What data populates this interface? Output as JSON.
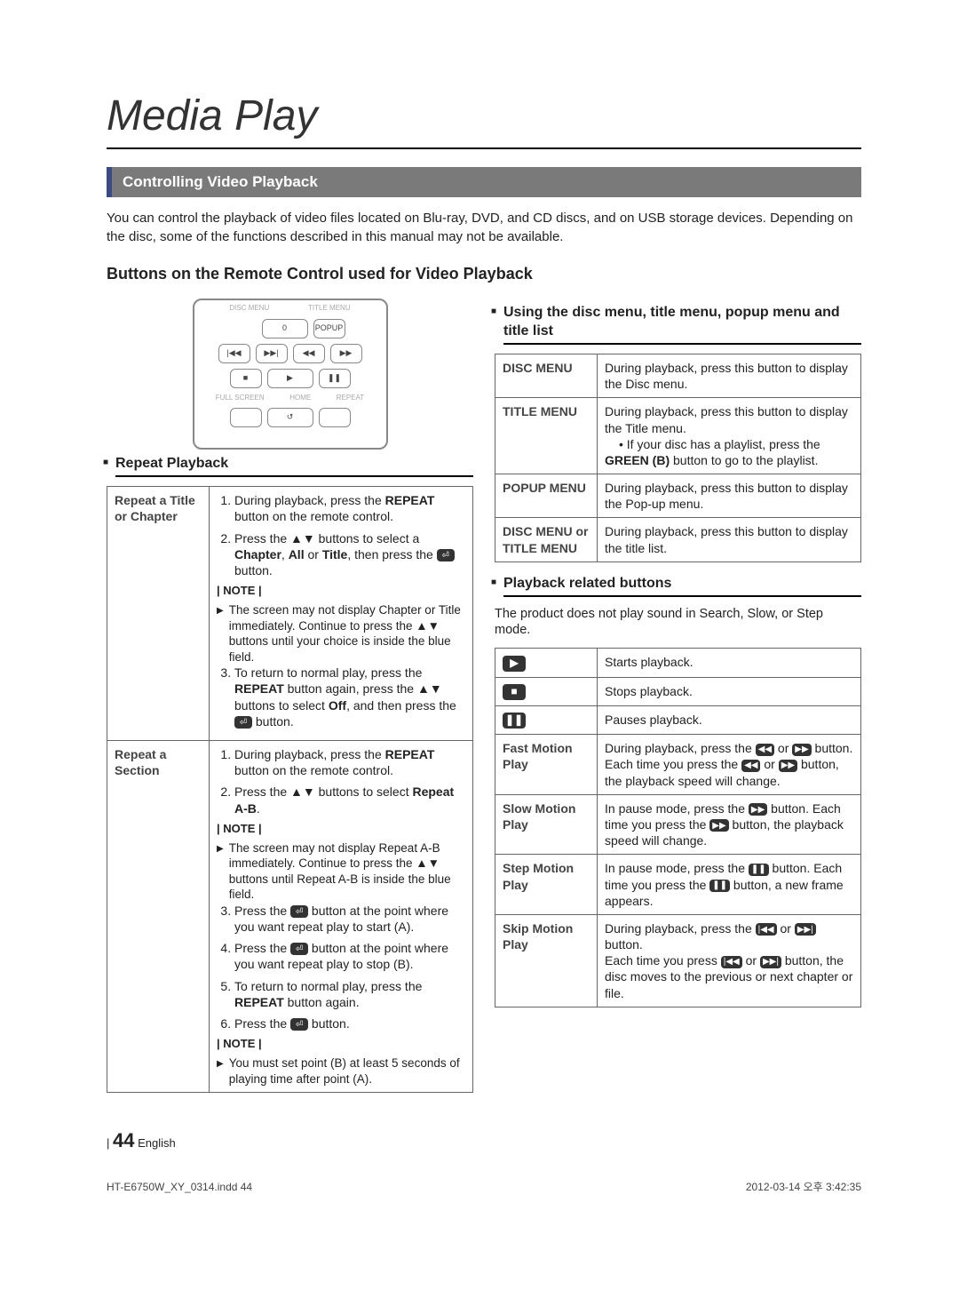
{
  "page": {
    "title": "Media Play",
    "section_bar": "Controlling Video Playback",
    "intro": "You can control the playback of video files located on Blu-ray, DVD, and CD discs, and on USB storage devices. Depending on the disc, some of the functions described in this manual may not be available.",
    "subhead": "Buttons on the Remote Control used for Video Playback",
    "page_number": "44",
    "lang": "English",
    "indd_line": "HT-E6750W_XY_0314.indd   44",
    "timestamp": "2012-03-14   오후 3:42:35"
  },
  "remote": {
    "row1_labels": [
      "DISC MENU",
      "TITLE MENU"
    ],
    "row1_right": "POPUP",
    "row1_num": "0",
    "row2": [
      "|◀◀",
      "▶▶|",
      "◀◀",
      "▶▶"
    ],
    "row3": [
      "■",
      "▶",
      "❚❚"
    ],
    "row4_labels": [
      "FULL SCREEN",
      "HOME",
      "REPEAT"
    ],
    "row4_center": "↺"
  },
  "left": {
    "repeat_head": "Repeat Playback",
    "rows": [
      {
        "label": "Repeat a Title or Chapter",
        "steps": [
          "During playback, press the <b>REPEAT</b> button on the remote control.",
          "Press the ▲▼ buttons to select a <b>Chapter</b>, <b>All</b> or <b>Title</b>, then press the <span class='ricon'>⏎</span> button."
        ],
        "note_label": "| NOTE |",
        "notes": [
          "The screen may not display Chapter or Title immediately. Continue to press the ▲▼ buttons until your choice is inside the blue field."
        ],
        "steps2": [
          "To return to normal play, press the <b>REPEAT</b> button again, press the ▲▼ buttons to select <b>Off</b>, and then press the <span class='ricon'>⏎</span> button."
        ]
      },
      {
        "label": "Repeat a Section",
        "steps": [
          "During playback, press the <b>REPEAT</b> button on the remote control.",
          "Press the ▲▼ buttons to select <b>Repeat A-B</b>."
        ],
        "note_label": "| NOTE |",
        "notes": [
          "The screen may not display Repeat A-B immediately. Continue to press the ▲▼ buttons until  Repeat A-B  is inside the blue field."
        ],
        "steps2": [
          "Press the <span class='ricon'>⏎</span> button at the point where you want repeat play to start (A).",
          "Press the <span class='ricon'>⏎</span> button at the point where you want repeat play to stop (B).",
          "To return to normal play, press the <b>REPEAT</b> button again.",
          "Press the <span class='ricon'>⏎</span> button."
        ],
        "note2_label": "| NOTE |",
        "notes2": [
          "You must set point (B) at least 5 seconds of playing time after point (A)."
        ]
      }
    ]
  },
  "right": {
    "menu_head": "Using the disc menu, title menu, popup menu and title list",
    "menu_rows": [
      {
        "label": "DISC MENU",
        "desc": "During playback, press this button to display the Disc menu."
      },
      {
        "label": "TITLE MENU",
        "desc": "During playback, press this button to display the Title menu.<br><span class='bullet-ind'>• If your disc has a playlist, press the <b>GREEN (B)</b> button to go to the playlist.</span>"
      },
      {
        "label": "POPUP MENU",
        "desc": "During playback, press this button to display the Pop-up menu."
      },
      {
        "label": "DISC MENU or TITLE MENU",
        "desc": "During playback, press this button to display the title list."
      }
    ],
    "pb_head": "Playback related buttons",
    "pb_sub": "The product does not play sound in Search, Slow, or Step mode.",
    "pb_rows": [
      {
        "icon": "▶",
        "label": "",
        "desc": "Starts playback."
      },
      {
        "icon": "■",
        "label": "",
        "desc": "Stops playback."
      },
      {
        "icon": "❚❚",
        "label": "",
        "desc": "Pauses playback."
      },
      {
        "icon": "",
        "label": "Fast Motion Play",
        "desc": "During playback, press the <span class='ricon'>◀◀</span> or <span class='ricon'>▶▶</span> button.<br>Each time you press the <span class='ricon'>◀◀</span> or <span class='ricon'>▶▶</span> button, the playback speed will change."
      },
      {
        "icon": "",
        "label": "Slow Motion Play",
        "desc": "In pause mode, press the <span class='ricon'>▶▶</span> button. Each time you press the <span class='ricon'>▶▶</span> button, the playback speed will change."
      },
      {
        "icon": "",
        "label": "Step Motion Play",
        "desc": "In pause mode, press the <span class='ricon'>❚❚</span> button. Each time you press the <span class='ricon'>❚❚</span> button, a new frame appears."
      },
      {
        "icon": "",
        "label": "Skip Motion Play",
        "desc": "During playback, press the <span class='ricon'>|◀◀</span> or <span class='ricon'>▶▶|</span> button.<br>Each time you press <span class='ricon'>|◀◀</span> or <span class='ricon'>▶▶|</span> button, the disc moves to the previous or next chapter or file."
      }
    ]
  },
  "colors": {
    "section_bar_bg": "#7a7a7a",
    "section_bar_accent": "#3a4a85",
    "border": "#666666",
    "text": "#222222"
  }
}
